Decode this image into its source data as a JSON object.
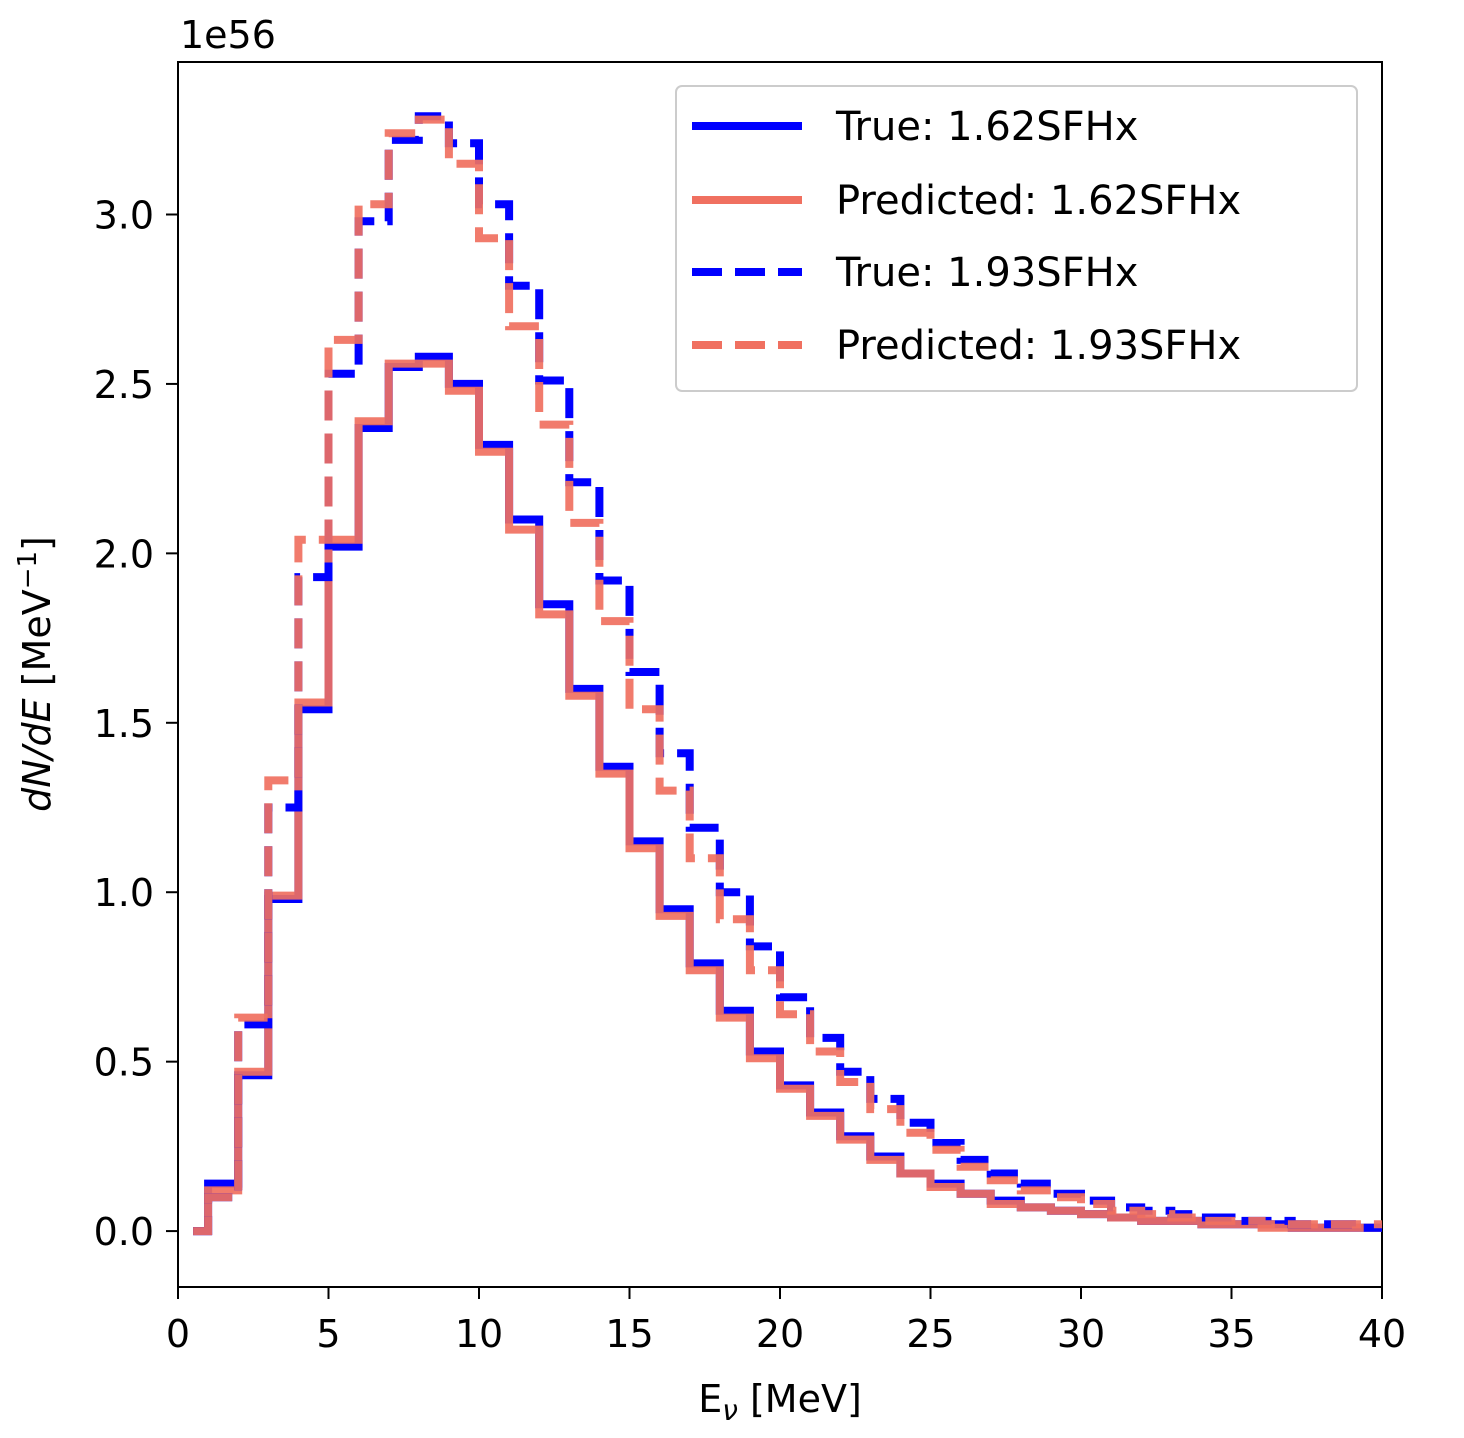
{
  "chart_data": {
    "type": "line",
    "title": "",
    "offset_label": "1e56",
    "xlabel_main": "E",
    "xlabel_sub": "ν",
    "xlabel_unit": " [MeV]",
    "ylabel_main": "dN/dE",
    "ylabel_unit": " [MeV",
    "ylabel_exp": "−1",
    "ylabel_close": "]",
    "xlim": [
      0,
      40
    ],
    "ylim": [
      -0.165,
      3.45
    ],
    "xticks": [
      0,
      5,
      10,
      15,
      20,
      25,
      30,
      35,
      40
    ],
    "xtick_labels": [
      "0",
      "5",
      "10",
      "15",
      "20",
      "25",
      "30",
      "35",
      "40"
    ],
    "yticks": [
      0.0,
      0.5,
      1.0,
      1.5,
      2.0,
      2.5,
      3.0
    ],
    "ytick_labels": [
      "0.0",
      "0.5",
      "1.0",
      "1.5",
      "2.0",
      "2.5",
      "3.0"
    ],
    "grid": false,
    "legend_position": "top-right",
    "step_start_x": 0.5,
    "x": [
      1,
      2,
      3,
      4,
      5,
      6,
      7,
      8,
      9,
      10,
      11,
      12,
      13,
      14,
      15,
      16,
      17,
      18,
      19,
      20,
      21,
      22,
      23,
      24,
      25,
      26,
      27,
      28,
      29,
      30,
      31,
      32,
      33,
      34,
      35,
      36,
      37,
      38,
      39,
      40
    ],
    "series": [
      {
        "name": "True: 1.62SFHx",
        "color": "#0000ff",
        "dash": "solid",
        "values": [
          0.0,
          0.14,
          0.46,
          0.98,
          1.54,
          2.02,
          2.37,
          2.55,
          2.58,
          2.5,
          2.32,
          2.1,
          1.85,
          1.6,
          1.37,
          1.15,
          0.95,
          0.79,
          0.65,
          0.53,
          0.43,
          0.35,
          0.28,
          0.22,
          0.17,
          0.14,
          0.11,
          0.09,
          0.07,
          0.06,
          0.05,
          0.04,
          0.03,
          0.03,
          0.02,
          0.02,
          0.02,
          0.01,
          0.01,
          0.01
        ]
      },
      {
        "name": "Predicted: 1.62SFHx",
        "color": "#f07060",
        "dash": "solid",
        "values": [
          0.0,
          0.12,
          0.47,
          0.99,
          1.56,
          2.04,
          2.39,
          2.56,
          2.56,
          2.48,
          2.3,
          2.07,
          1.82,
          1.58,
          1.35,
          1.13,
          0.93,
          0.77,
          0.63,
          0.51,
          0.42,
          0.34,
          0.27,
          0.21,
          0.17,
          0.13,
          0.11,
          0.08,
          0.07,
          0.06,
          0.05,
          0.04,
          0.03,
          0.03,
          0.02,
          0.02,
          0.01,
          0.01,
          0.01,
          0.01
        ]
      },
      {
        "name": "True: 1.93SFHx",
        "color": "#0000ff",
        "dash": "dashed",
        "values": [
          0.0,
          0.1,
          0.61,
          1.25,
          1.93,
          2.53,
          2.98,
          3.22,
          3.29,
          3.21,
          3.03,
          2.79,
          2.51,
          2.21,
          1.92,
          1.65,
          1.41,
          1.19,
          1.0,
          0.84,
          0.69,
          0.57,
          0.47,
          0.39,
          0.32,
          0.26,
          0.21,
          0.17,
          0.14,
          0.11,
          0.09,
          0.07,
          0.06,
          0.05,
          0.04,
          0.03,
          0.03,
          0.02,
          0.02,
          0.01
        ]
      },
      {
        "name": "Predicted: 1.93SFHx",
        "color": "#f07060",
        "dash": "dashed",
        "values": [
          0.0,
          0.1,
          0.63,
          1.33,
          2.04,
          2.63,
          3.03,
          3.24,
          3.28,
          3.15,
          2.93,
          2.67,
          2.38,
          2.09,
          1.8,
          1.54,
          1.3,
          1.1,
          0.92,
          0.77,
          0.64,
          0.53,
          0.44,
          0.36,
          0.29,
          0.24,
          0.19,
          0.15,
          0.12,
          0.1,
          0.08,
          0.06,
          0.05,
          0.04,
          0.03,
          0.03,
          0.02,
          0.02,
          0.02,
          0.02
        ]
      }
    ]
  }
}
